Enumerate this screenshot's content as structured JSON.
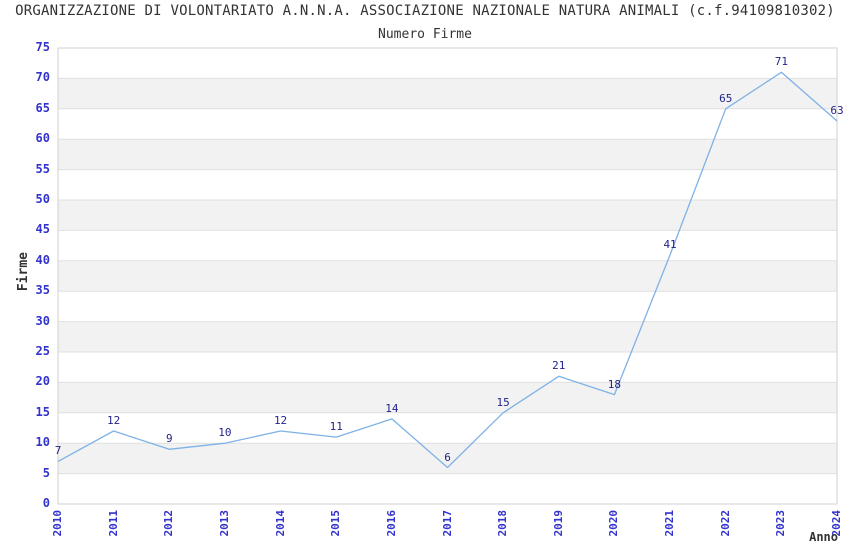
{
  "chart_data": {
    "type": "line",
    "title": "ORGANIZZAZIONE DI VOLONTARIATO A.N.N.A. ASSOCIAZIONE NAZIONALE NATURA ANIMALI (c.f.94109810302)",
    "subtitle": "Numero Firme",
    "xlabel": "Anno",
    "ylabel": "Firme",
    "categories": [
      "2010",
      "2011",
      "2012",
      "2013",
      "2014",
      "2015",
      "2016",
      "2017",
      "2018",
      "2019",
      "2020",
      "2021",
      "2022",
      "2023",
      "2024"
    ],
    "values": [
      7,
      12,
      9,
      10,
      12,
      11,
      14,
      6,
      15,
      21,
      18,
      41,
      65,
      71,
      63
    ],
    "ylim": [
      0,
      75
    ],
    "ytick_step": 5,
    "grid": true,
    "legend": "none",
    "band_pattern": "alternating horizontal bands every 5 units, gray on 5-10, 15-20, 25-30, 35-40, 45-50, 55-60, 65-70",
    "colors": {
      "line": "#7fb2e5",
      "tick_label": "#3232cd",
      "value_label": "#232389",
      "band": "#f2f2f2",
      "gridline": "#e0e0e0",
      "plot_border": "#d0d0d0",
      "text": "#333333",
      "background": "#ffffff"
    }
  }
}
